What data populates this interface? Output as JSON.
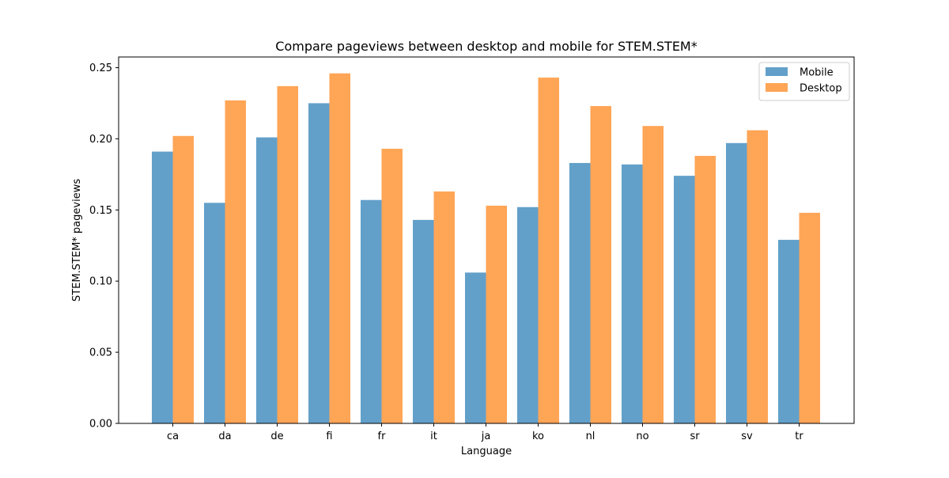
{
  "chart_data": {
    "type": "bar",
    "title": "Compare pageviews between desktop and mobile for STEM.STEM*",
    "xlabel": "Language",
    "ylabel": "STEM.STEM* pageviews",
    "categories": [
      "ca",
      "da",
      "de",
      "fi",
      "fr",
      "it",
      "ja",
      "ko",
      "nl",
      "no",
      "sr",
      "sv",
      "tr"
    ],
    "series": [
      {
        "name": "Mobile",
        "color": "#1f77b4",
        "values": [
          0.191,
          0.155,
          0.201,
          0.225,
          0.157,
          0.143,
          0.106,
          0.152,
          0.183,
          0.182,
          0.174,
          0.197,
          0.129
        ]
      },
      {
        "name": "Desktop",
        "color": "#ff7f0e",
        "values": [
          0.202,
          0.227,
          0.237,
          0.246,
          0.193,
          0.163,
          0.153,
          0.243,
          0.223,
          0.209,
          0.188,
          0.206,
          0.148
        ]
      }
    ],
    "bar_opacity": 0.7,
    "ylim": [
      0,
      0.2575
    ],
    "yticks": [
      "0.00",
      "0.05",
      "0.10",
      "0.15",
      "0.20",
      "0.25"
    ],
    "ytick_values": [
      0,
      0.05,
      0.1,
      0.15,
      0.2,
      0.25
    ],
    "grid": false,
    "legend_position": "top-right"
  }
}
